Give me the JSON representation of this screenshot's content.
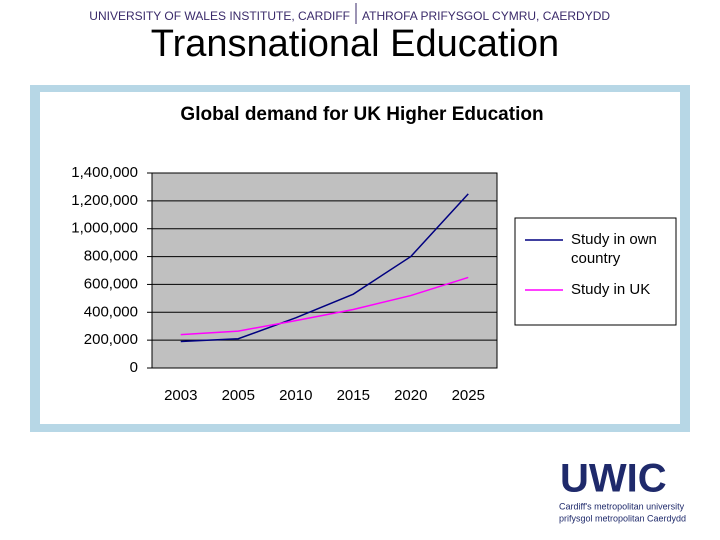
{
  "header": {
    "left": "UNIVERSITY OF WALES INSTITUTE, CARDIFF",
    "right": "ATHROFA PRIFYSGOL CYMRU, CAERDYDD"
  },
  "slide_title": "Transnational Education",
  "chart_data": {
    "type": "line",
    "title": "Global demand for UK Higher Education",
    "categories": [
      "2003",
      "2005",
      "2010",
      "2015",
      "2020",
      "2025"
    ],
    "series": [
      {
        "name": "Study in own country",
        "color": "#000080",
        "values": [
          190000,
          210000,
          360000,
          530000,
          800000,
          1250000
        ]
      },
      {
        "name": "Study in UK",
        "color": "#ff00ff",
        "values": [
          240000,
          265000,
          340000,
          420000,
          520000,
          650000
        ]
      }
    ],
    "ylim": [
      0,
      1400000
    ],
    "yticks": [
      0,
      {
        "value": 200000,
        "label": "200,000"
      },
      {
        "value": 400000,
        "label": "400,000"
      },
      {
        "value": 600000,
        "label": "600,000"
      },
      {
        "value": 800000,
        "label": "800,000"
      },
      {
        "value": 1000000,
        "label": "1,000,000"
      },
      {
        "value": 1200000,
        "label": "1,200,000"
      },
      {
        "value": 1400000,
        "label": "1,400,000"
      }
    ],
    "grid": true,
    "plot_background": "#c0c0c0",
    "legend": "right"
  },
  "logo": {
    "mark": "UWIC",
    "line1": "Cardiff's metropolitan university",
    "line2": "prifysgol metropolitan Caerdydd"
  }
}
